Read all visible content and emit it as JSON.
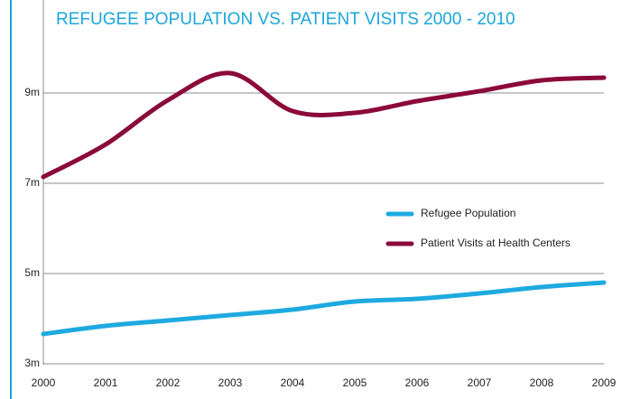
{
  "chart_data": {
    "type": "line",
    "title": "REFUGEE POPULATION VS. PATIENT VISITS 2000 - 2010",
    "categories": [
      "2000",
      "2001",
      "2002",
      "2003",
      "2004",
      "2005",
      "2006",
      "2007",
      "2008",
      "2009"
    ],
    "series": [
      {
        "name": "Refugee Population",
        "color": "#1eaae0",
        "values": [
          3.66,
          3.84,
          3.96,
          4.08,
          4.2,
          4.38,
          4.44,
          4.56,
          4.7,
          4.8
        ]
      },
      {
        "name": "Patient Visits at Health Centers",
        "color": "#8b0a3a",
        "values": [
          7.14,
          7.86,
          8.84,
          9.44,
          8.6,
          8.56,
          8.82,
          9.04,
          9.28,
          9.34
        ]
      }
    ],
    "ylim": [
      3,
      11
    ],
    "yticks": [
      {
        "value": 3,
        "label": "3m"
      },
      {
        "value": 5,
        "label": "5m"
      },
      {
        "value": 7,
        "label": "7m"
      },
      {
        "value": 9,
        "label": "9m"
      }
    ],
    "grid": true,
    "legend": "right"
  }
}
